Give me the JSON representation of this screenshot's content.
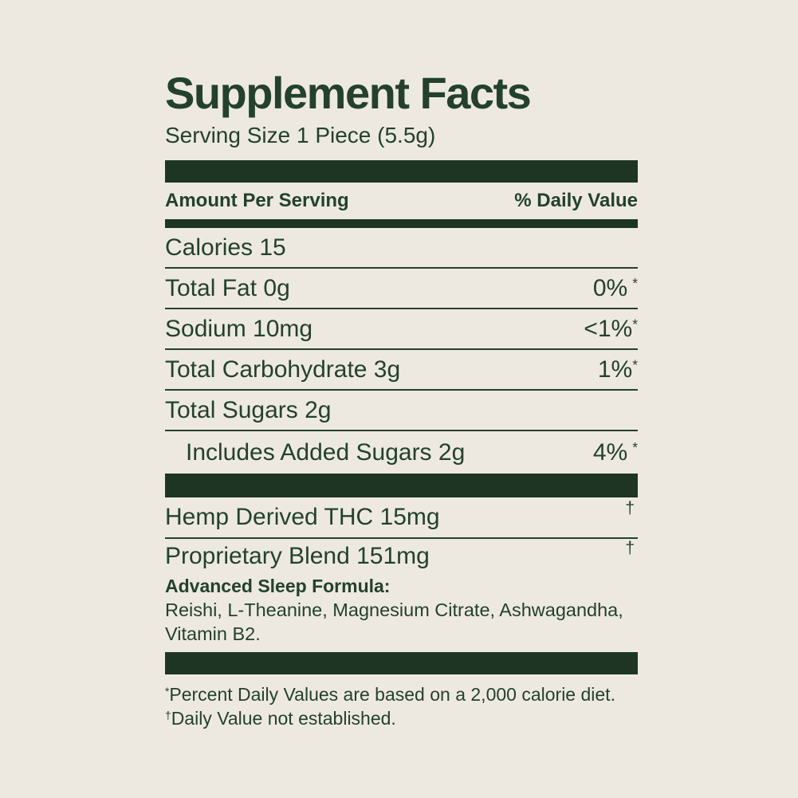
{
  "colors": {
    "background": "#EDE9E1",
    "text_green": "#24412B",
    "bar_green": "#1D3522"
  },
  "header": {
    "title": "Supplement Facts",
    "serving_size": "Serving Size 1 Piece (5.5g)"
  },
  "table": {
    "amount_header": "Amount Per Serving",
    "dv_header": "% Daily Value",
    "rows": [
      {
        "name": "Calories 15",
        "value": "",
        "sup": ""
      },
      {
        "name": "Total Fat 0g",
        "value": "0%",
        "sup": "*"
      },
      {
        "name": "Sodium 10mg",
        "value": "<1%",
        "sup": "*"
      },
      {
        "name": "Total Carbohydrate 3g",
        "value": "1%",
        "sup": "*"
      },
      {
        "name": "Total Sugars 2g",
        "value": "",
        "sup": ""
      },
      {
        "name": "Includes Added Sugars 2g",
        "value": "4%",
        "sup": "*"
      }
    ],
    "supplement_rows": [
      {
        "name": "Hemp Derived THC 15mg",
        "dagger": "†"
      },
      {
        "name": "Proprietary Blend 151mg",
        "dagger": "†"
      }
    ]
  },
  "blend": {
    "label": "Advanced Sleep Formula:",
    "ingredients_line1": "Reishi, L-Theanine, Magnesium Citrate, Ashwagandha,",
    "ingredients_line2": "Vitamin B2."
  },
  "footnotes": [
    {
      "sup": "*",
      "text": "Percent Daily Values are based on a 2,000 calorie diet."
    },
    {
      "sup": "†",
      "text": "Daily Value not established."
    }
  ]
}
